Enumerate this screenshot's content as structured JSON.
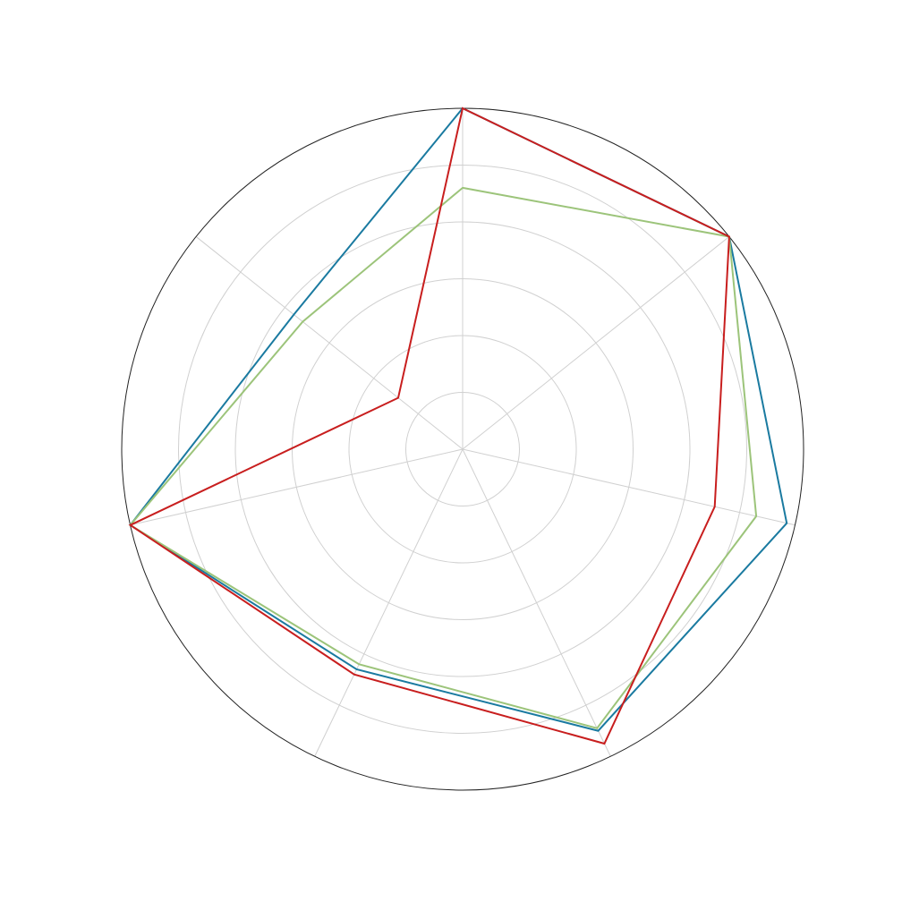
{
  "chart_data": {
    "type": "radar",
    "axes_count": 7,
    "rlim": [
      0,
      6
    ],
    "rings": [
      1,
      2,
      3,
      4,
      5,
      6
    ],
    "grid": true,
    "legend": "none",
    "series": [
      {
        "color": "#1a7aa0",
        "values": [
          6.0,
          6.0,
          5.85,
          5.5,
          4.3,
          6.0,
          3.8
        ]
      },
      {
        "color": "#9cc47a",
        "values": [
          4.6,
          6.0,
          5.3,
          5.45,
          4.2,
          6.0,
          3.6
        ]
      },
      {
        "color": "#c81e1e",
        "values": [
          6.0,
          6.0,
          4.55,
          5.75,
          4.4,
          6.0,
          1.45
        ]
      }
    ]
  }
}
